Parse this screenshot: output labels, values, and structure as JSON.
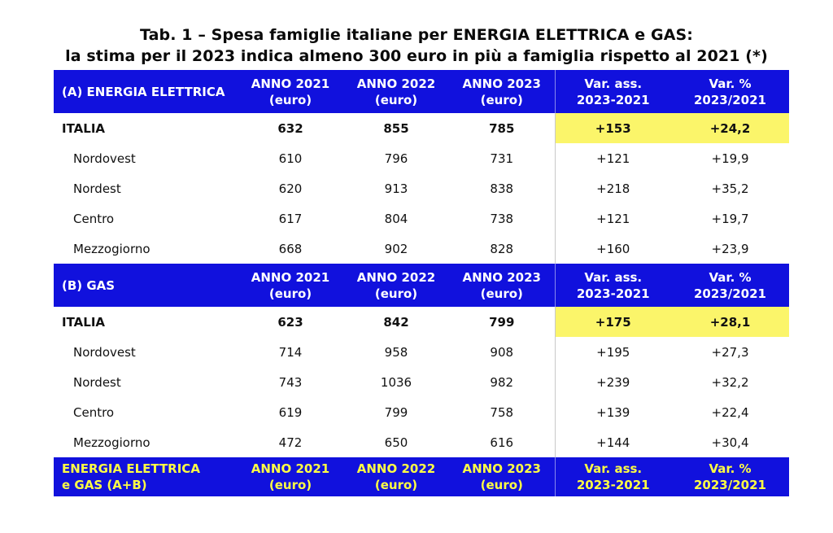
{
  "title": {
    "line1": "Tab. 1 – Spesa famiglie italiane per ENERGIA ELETTRICA e GAS:",
    "line2": "la stima per il 2023 indica almeno 300 euro in più a famiglia rispetto al 2021 (*)"
  },
  "colors": {
    "header_blue": "#1111dd",
    "highlight_yellow": "#fbf56a",
    "total_header_text": "#ffff44"
  },
  "columns": [
    {
      "l1": "ANNO 2021",
      "l2": "(euro)"
    },
    {
      "l1": "ANNO 2022",
      "l2": "(euro)"
    },
    {
      "l1": "ANNO 2023",
      "l2": "(euro)"
    },
    {
      "l1": "Var. ass.",
      "l2": "2023-2021"
    },
    {
      "l1": "Var. %",
      "l2": "2023/2021"
    }
  ],
  "sections": [
    {
      "label": "(A) ENERGIA ELETTRICA",
      "rows": [
        {
          "name": "ITALIA",
          "values": [
            "632",
            "855",
            "785",
            "+153",
            "+24,2"
          ]
        },
        {
          "name": "Nordovest",
          "values": [
            "610",
            "796",
            "731",
            "+121",
            "+19,9"
          ]
        },
        {
          "name": "Nordest",
          "values": [
            "620",
            "913",
            "838",
            "+218",
            "+35,2"
          ]
        },
        {
          "name": "Centro",
          "values": [
            "617",
            "804",
            "738",
            "+121",
            "+19,7"
          ]
        },
        {
          "name": "Mezzogiorno",
          "values": [
            "668",
            "902",
            "828",
            "+160",
            "+23,9"
          ]
        }
      ]
    },
    {
      "label": "(B) GAS",
      "rows": [
        {
          "name": "ITALIA",
          "values": [
            "623",
            "842",
            "799",
            "+175",
            "+28,1"
          ]
        },
        {
          "name": "Nordovest",
          "values": [
            "714",
            "958",
            "908",
            "+195",
            "+27,3"
          ]
        },
        {
          "name": "Nordest",
          "values": [
            "743",
            "1036",
            "982",
            "+239",
            "+32,2"
          ]
        },
        {
          "name": "Centro",
          "values": [
            "619",
            "799",
            "758",
            "+139",
            "+22,4"
          ]
        },
        {
          "name": "Mezzogiorno",
          "values": [
            "472",
            "650",
            "616",
            "+144",
            "+30,4"
          ]
        }
      ]
    }
  ],
  "total_section": {
    "label_l1": "ENERGIA ELETTRICA",
    "label_l2": "e GAS (A+B)"
  }
}
